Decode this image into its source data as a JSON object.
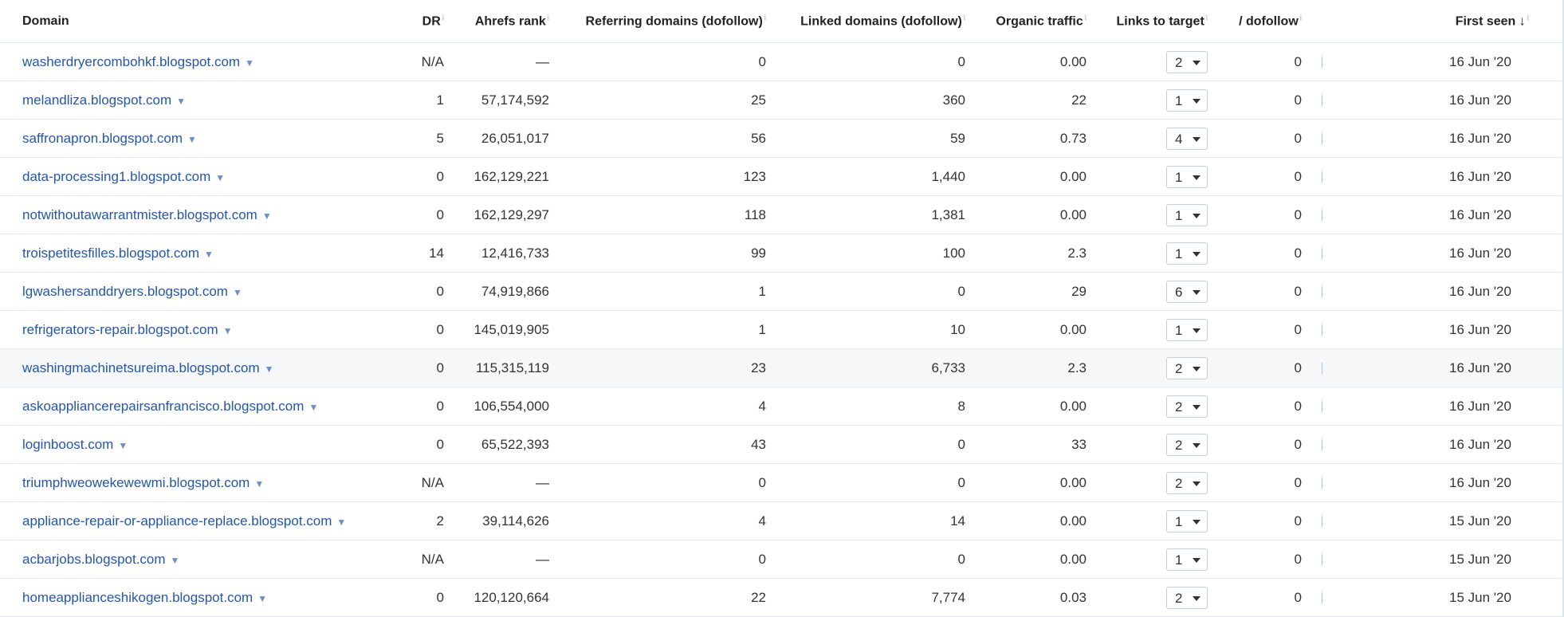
{
  "table": {
    "headers": [
      "Domain",
      "DR",
      "Ahrefs rank",
      "Referring domains (dofollow)",
      "Linked domains (dofollow)",
      "Organic traffic",
      "Links to target",
      "/ dofollow",
      "First seen"
    ],
    "rows": [
      [
        "washerdryercombohkf.blogspot.com",
        "N/A",
        "—",
        "0",
        "0",
        "0.00",
        "2",
        "0",
        "16 Jun '20"
      ],
      [
        "melandliza.blogspot.com",
        "1",
        "57,174,592",
        "25",
        "360",
        "22",
        "1",
        "0",
        "16 Jun '20"
      ],
      [
        "saffronapron.blogspot.com",
        "5",
        "26,051,017",
        "56",
        "59",
        "0.73",
        "4",
        "0",
        "16 Jun '20"
      ],
      [
        "data-processing1.blogspot.com",
        "0",
        "162,129,221",
        "123",
        "1,440",
        "0.00",
        "1",
        "0",
        "16 Jun '20"
      ],
      [
        "notwithoutawarrantmister.blogspot.com",
        "0",
        "162,129,297",
        "118",
        "1,381",
        "0.00",
        "1",
        "0",
        "16 Jun '20"
      ],
      [
        "troispetitesfilles.blogspot.com",
        "14",
        "12,416,733",
        "99",
        "100",
        "2.3",
        "1",
        "0",
        "16 Jun '20"
      ],
      [
        "lgwashersanddryers.blogspot.com",
        "0",
        "74,919,866",
        "1",
        "0",
        "29",
        "6",
        "0",
        "16 Jun '20"
      ],
      [
        "refrigerators-repair.blogspot.com",
        "0",
        "145,019,905",
        "1",
        "10",
        "0.00",
        "1",
        "0",
        "16 Jun '20"
      ],
      [
        "washingmachinetsureima.blogspot.com",
        "0",
        "115,315,119",
        "23",
        "6,733",
        "2.3",
        "2",
        "0",
        "16 Jun '20"
      ],
      [
        "askoappliancerepairsanfrancisco.blogspot.com",
        "0",
        "106,554,000",
        "4",
        "8",
        "0.00",
        "2",
        "0",
        "16 Jun '20"
      ],
      [
        "loginboost.com",
        "0",
        "65,522,393",
        "43",
        "0",
        "33",
        "2",
        "0",
        "16 Jun '20"
      ],
      [
        "triumphweowekewewmi.blogspot.com",
        "N/A",
        "—",
        "0",
        "0",
        "0.00",
        "2",
        "0",
        "16 Jun '20"
      ],
      [
        "appliance-repair-or-appliance-replace.blogspot.com",
        "2",
        "39,114,626",
        "4",
        "14",
        "0.00",
        "1",
        "0",
        "15 Jun '20"
      ],
      [
        "acbarjobs.blogspot.com",
        "N/A",
        "—",
        "0",
        "0",
        "0.00",
        "1",
        "0",
        "15 Jun '20"
      ],
      [
        "homeapplianceshikogen.blogspot.com",
        "0",
        "120,120,664",
        "22",
        "7,774",
        "0.03",
        "2",
        "0",
        "15 Jun '20"
      ]
    ]
  }
}
